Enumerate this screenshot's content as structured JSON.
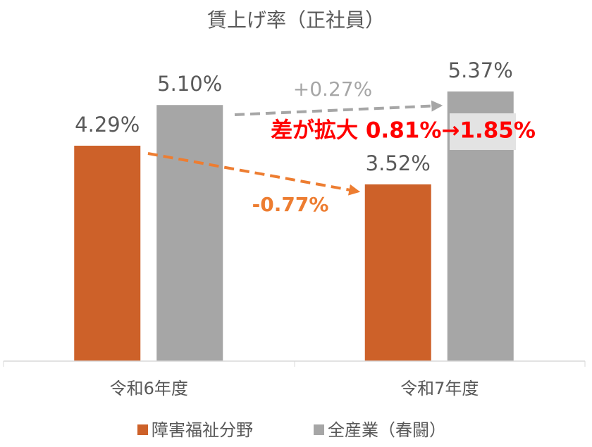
{
  "chart_data": {
    "type": "bar",
    "title": "賃上げ率（正社員）",
    "categories": [
      "令和6年度",
      "令和7年度"
    ],
    "series": [
      {
        "name": "障害福祉分野",
        "color": "#cd6129",
        "values": [
          4.29,
          3.52
        ],
        "value_labels": [
          "4.29%",
          "3.52%"
        ]
      },
      {
        "name": "全産業（春闘）",
        "color": "#a6a6a6",
        "values": [
          5.1,
          5.37
        ],
        "value_labels": [
          "5.10%",
          "5.37%"
        ]
      }
    ],
    "ylim": [
      0,
      6
    ],
    "annotations": [
      {
        "text": "+0.27%",
        "color": "#a6a6a6"
      },
      {
        "text": "-0.77%",
        "color": "#ed7d31"
      },
      {
        "text": "差が拡大 0.81%→1.85%",
        "color": "#ff0000"
      }
    ],
    "legend": "bottom"
  }
}
